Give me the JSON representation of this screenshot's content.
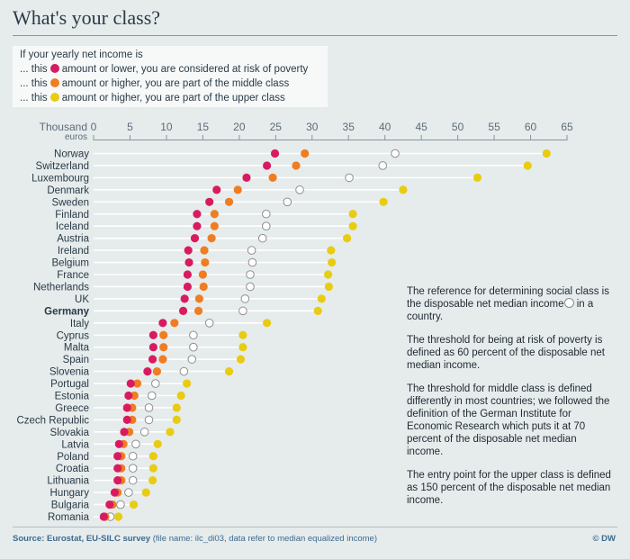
{
  "title": "What's your class?",
  "legend": {
    "heading": "If your yearly net income is",
    "items": [
      {
        "prefix": "... this",
        "text": "amount or lower, you are considered at risk of poverty",
        "color": "#d81b60"
      },
      {
        "prefix": "... this",
        "text": "amount or higher, you are part of the middle class",
        "color": "#ef7d22"
      },
      {
        "prefix": "... this",
        "text": "amount or higher, you are part of the upper class",
        "color": "#e8cc12"
      }
    ]
  },
  "chart_data": {
    "type": "scatter",
    "xlabel_line1": "Thousand",
    "xlabel_line2": "euros",
    "xlim": [
      0,
      65
    ],
    "xticks": [
      0,
      5,
      10,
      15,
      20,
      25,
      30,
      35,
      40,
      45,
      50,
      55,
      60,
      65
    ],
    "categories": [
      "Norway",
      "Switzerland",
      "Luxembourg",
      "Denmark",
      "Sweden",
      "Finland",
      "Iceland",
      "Austria",
      "Ireland",
      "Belgium",
      "France",
      "Netherlands",
      "UK",
      "Germany",
      "Italy",
      "Cyprus",
      "Malta",
      "Spain",
      "Slovenia",
      "Portugal",
      "Estonia",
      "Greece",
      "Czech Republic",
      "Slovakia",
      "Latvia",
      "Poland",
      "Croatia",
      "Lithuania",
      "Hungary",
      "Bulgaria",
      "Romania"
    ],
    "bold_categories": [
      "Germany"
    ],
    "series": [
      {
        "key": "poverty",
        "color": "#d81b60",
        "values": [
          24.9,
          23.8,
          21.0,
          16.9,
          15.9,
          14.2,
          14.2,
          13.9,
          13.0,
          13.1,
          12.9,
          12.9,
          12.5,
          12.3,
          9.5,
          8.2,
          8.2,
          8.1,
          7.4,
          5.1,
          4.8,
          4.6,
          4.6,
          4.2,
          3.5,
          3.3,
          3.3,
          3.3,
          2.9,
          2.2,
          1.4
        ]
      },
      {
        "key": "middle",
        "color": "#ef7d22",
        "values": [
          29.0,
          27.8,
          24.6,
          19.8,
          18.6,
          16.6,
          16.6,
          16.2,
          15.2,
          15.3,
          15.0,
          15.1,
          14.5,
          14.4,
          11.1,
          9.6,
          9.6,
          9.5,
          8.7,
          6.0,
          5.6,
          5.3,
          5.3,
          4.9,
          4.1,
          3.8,
          3.8,
          3.8,
          3.3,
          2.6,
          1.6
        ]
      },
      {
        "key": "median",
        "color": "#ffffff",
        "values": [
          41.4,
          39.7,
          35.1,
          28.3,
          26.6,
          23.7,
          23.7,
          23.2,
          21.7,
          21.8,
          21.5,
          21.5,
          20.8,
          20.5,
          15.9,
          13.7,
          13.7,
          13.5,
          12.4,
          8.5,
          8.0,
          7.6,
          7.6,
          7.0,
          5.8,
          5.4,
          5.4,
          5.4,
          4.8,
          3.7,
          2.3
        ]
      },
      {
        "key": "upper",
        "color": "#e8cc12",
        "values": [
          62.2,
          59.6,
          52.7,
          42.5,
          39.8,
          35.6,
          35.6,
          34.8,
          32.6,
          32.7,
          32.2,
          32.3,
          31.3,
          30.8,
          23.8,
          20.5,
          20.5,
          20.2,
          18.6,
          12.8,
          12.0,
          11.4,
          11.4,
          10.5,
          8.8,
          8.2,
          8.2,
          8.1,
          7.2,
          5.5,
          3.4
        ]
      }
    ]
  },
  "note": [
    "The reference for determining social class is the disposable net median income",
    "in a country.",
    "The threshold for being at risk of poverty is defined as 60 percent of the disposable net median income.",
    "The threshold for middle class is defined differently in most countries; we followed the definition of the German Institute for Economic Research which puts it at 70 percent of the disposable net median income.",
    "The entry point for the upper class is defined as 150 percent of the disposable net median income."
  ],
  "footer": {
    "source": "Source: Eurostat, EU-SILC survey",
    "detail": "(file name: ilc_di03, data refer to median equalized income)",
    "credit": "© DW"
  }
}
